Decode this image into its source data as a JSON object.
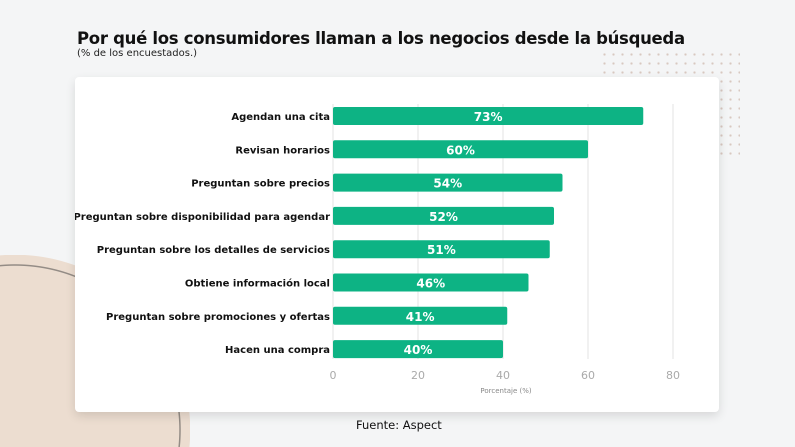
{
  "title": "Por qué los consumidores llaman a los negocios desde la búsqueda",
  "subtitle": "(% de los encuestados.)",
  "source": "Fuente: Aspect",
  "chart_data": {
    "type": "bar",
    "orientation": "horizontal",
    "categories": [
      "Agendan una cita",
      "Revisan horarios",
      "Preguntan sobre precios",
      "Preguntan sobre disponibilidad para agendar",
      "Preguntan sobre los detalles de servicios",
      "Obtiene información local",
      "Preguntan sobre promociones y ofertas",
      "Hacen una compra"
    ],
    "values": [
      73,
      60,
      54,
      52,
      51,
      46,
      41,
      40
    ],
    "data_labels": [
      "73%",
      "60%",
      "54%",
      "52%",
      "51%",
      "46%",
      "41%",
      "40%"
    ],
    "xlabel": "Porcentaje (%)",
    "xlim": [
      0,
      80
    ],
    "xticks": [
      0,
      20,
      40,
      60,
      80
    ],
    "grid": true,
    "bar_color": "#0db384"
  }
}
